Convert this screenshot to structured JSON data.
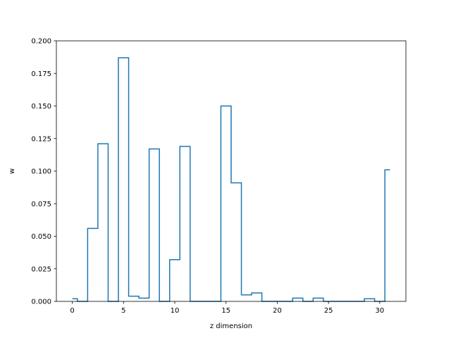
{
  "chart_data": {
    "type": "step",
    "title": "",
    "xlabel": "z dimension",
    "ylabel": "w",
    "xlim": [
      -1.55,
      32.55
    ],
    "ylim": [
      0,
      0.2
    ],
    "grid": false,
    "line_color": "#1f77b4",
    "x_ticks": [
      0,
      5,
      10,
      15,
      20,
      25,
      30
    ],
    "x_tick_labels": [
      "0",
      "5",
      "10",
      "15",
      "20",
      "25",
      "30"
    ],
    "y_ticks": [
      0,
      0.025,
      0.05,
      0.075,
      0.1,
      0.125,
      0.15,
      0.175,
      0.2
    ],
    "y_tick_labels": [
      "0.000",
      "0.025",
      "0.050",
      "0.075",
      "0.100",
      "0.125",
      "0.150",
      "0.175",
      "0.200"
    ],
    "x": [
      0,
      1,
      2,
      3,
      4,
      5,
      6,
      7,
      8,
      9,
      10,
      11,
      12,
      13,
      14,
      15,
      16,
      17,
      18,
      19,
      20,
      21,
      22,
      23,
      24,
      25,
      26,
      27,
      28,
      29,
      30,
      31
    ],
    "values": [
      0.002,
      0.0,
      0.056,
      0.121,
      0.0,
      0.187,
      0.004,
      0.0025,
      0.117,
      0.0,
      0.032,
      0.119,
      0.0,
      0.0,
      0.0,
      0.15,
      0.091,
      0.005,
      0.0065,
      0.0,
      0.0,
      0.0,
      0.0025,
      0.0,
      0.0025,
      0.0,
      0.0,
      0.0,
      0.0,
      0.002,
      0.0,
      0.101
    ]
  }
}
